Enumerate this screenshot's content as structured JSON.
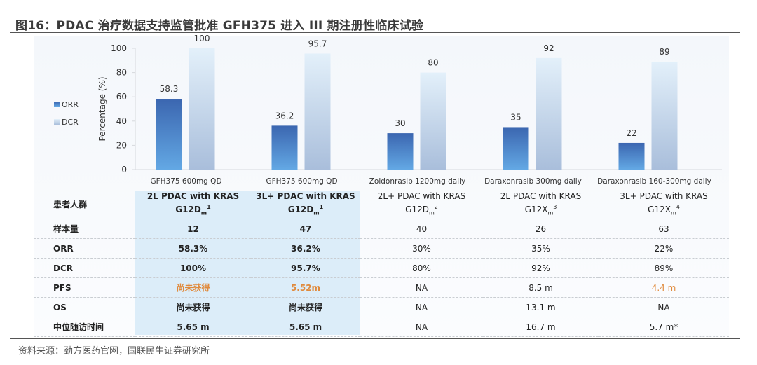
{
  "title": "图16：PDAC 治疗数据支持监管批准 GFH375 进入 III 期注册性临床试验",
  "source": "资料来源：劲方医药官网，国联民生证券研究所",
  "colors": {
    "orr_top": "#3b66b0",
    "orr_bottom": "#63a8e4",
    "dcr_top": "#e3f0fa",
    "dcr_bottom": "#a9bedb",
    "accent": "#e08a3c",
    "highlight": "#dcedf9"
  },
  "chart_data": {
    "type": "bar",
    "title": "",
    "xlabel": "",
    "ylabel": "Percentage (%)",
    "ylim": [
      0,
      100
    ],
    "yticks": [
      0,
      20,
      40,
      60,
      80,
      100
    ],
    "legend_position": "left",
    "categories": [
      "GFH375 600mg QD",
      "GFH375 600mg QD",
      "Zoldonrasib 1200mg daily",
      "Daraxonrasib 300mg daily",
      "Daraxonrasib 160-300mg daily"
    ],
    "series": [
      {
        "name": "ORR",
        "values": [
          58.3,
          36.2,
          30,
          35,
          22
        ],
        "labels": [
          "58.3",
          "36.2",
          "30",
          "35",
          "22"
        ]
      },
      {
        "name": "DCR",
        "values": [
          100,
          95.7,
          80,
          92,
          89
        ],
        "labels": [
          "100",
          "95.7",
          "80",
          "92",
          "89"
        ]
      }
    ]
  },
  "table": {
    "header_label": "患者人群",
    "headers": [
      {
        "line1": "2L PDAC with KRAS",
        "base": "G12D",
        "sub": "m",
        "sup": "1",
        "bold": true
      },
      {
        "line1": "3L+ PDAC with KRAS",
        "base": "G12D",
        "sub": "m",
        "sup": "1",
        "bold": true
      },
      {
        "line1": "2L+ PDAC with KRAS",
        "base": "G12D",
        "sub": "m",
        "sup": "2",
        "bold": false
      },
      {
        "line1": "2L PDAC with KRAS",
        "base": "G12X",
        "sub": "m",
        "sup": "3",
        "bold": false
      },
      {
        "line1": "3L+ PDAC with KRAS",
        "base": "G12X",
        "sub": "m",
        "sup": "4",
        "bold": false
      }
    ],
    "rows": [
      {
        "label": "样本量",
        "values": [
          "12",
          "47",
          "40",
          "26",
          "63"
        ],
        "accent": []
      },
      {
        "label": "ORR",
        "values": [
          "58.3%",
          "36.2%",
          "30%",
          "35%",
          "22%"
        ],
        "accent": []
      },
      {
        "label": "DCR",
        "values": [
          "100%",
          "95.7%",
          "80%",
          "92%",
          "89%"
        ],
        "accent": []
      },
      {
        "label": "PFS",
        "values": [
          "尚未获得",
          "5.52m",
          "NA",
          "8.5 m",
          "4.4 m"
        ],
        "accent": [
          0,
          1,
          4
        ]
      },
      {
        "label": "OS",
        "values": [
          "尚未获得",
          "尚未获得",
          "NA",
          "13.1 m",
          "NA"
        ],
        "accent": []
      },
      {
        "label": "中位随访时间",
        "values": [
          "5.65 m",
          "5.65 m",
          "NA",
          "16.7 m",
          "5.7 m*"
        ],
        "accent": []
      }
    ]
  }
}
